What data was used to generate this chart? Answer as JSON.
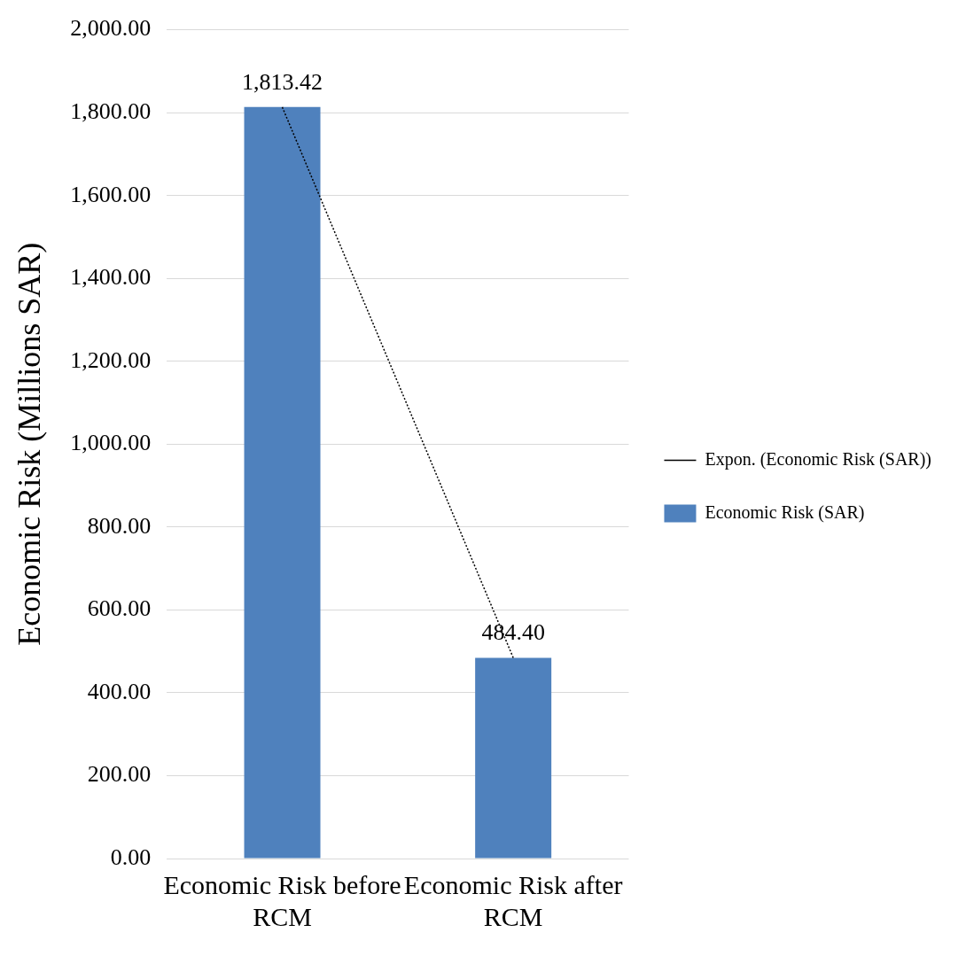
{
  "chart_data": {
    "type": "bar",
    "ylabel": "Economic Risk (Millions SAR)",
    "categories": [
      "Economic Risk before RCM",
      "Economic Risk after RCM"
    ],
    "series": [
      {
        "name": "Economic Risk (SAR)",
        "color": "#4f81bd",
        "values": [
          1813.42,
          484.4
        ],
        "value_labels": [
          "1,813.42",
          "484.40"
        ]
      },
      {
        "type": "line",
        "name": "Expon. (Economic Risk (SAR))",
        "color": "#000000",
        "line_style": "dotted",
        "marker": "none",
        "values": [
          1813.42,
          484.4
        ]
      }
    ],
    "ylim": [
      0,
      2000
    ],
    "yticks": [
      {
        "value": 0,
        "label": "0.00"
      },
      {
        "value": 200,
        "label": "200.00"
      },
      {
        "value": 400,
        "label": "400.00"
      },
      {
        "value": 600,
        "label": "600.00"
      },
      {
        "value": 800,
        "label": "800.00"
      },
      {
        "value": 1000,
        "label": "1,000.00"
      },
      {
        "value": 1200,
        "label": "1,200.00"
      },
      {
        "value": 1400,
        "label": "1,400.00"
      },
      {
        "value": 1600,
        "label": "1,600.00"
      },
      {
        "value": 1800,
        "label": "1,800.00"
      },
      {
        "value": 2000,
        "label": "2,000.00"
      }
    ],
    "grid": "y",
    "legend": "right"
  }
}
